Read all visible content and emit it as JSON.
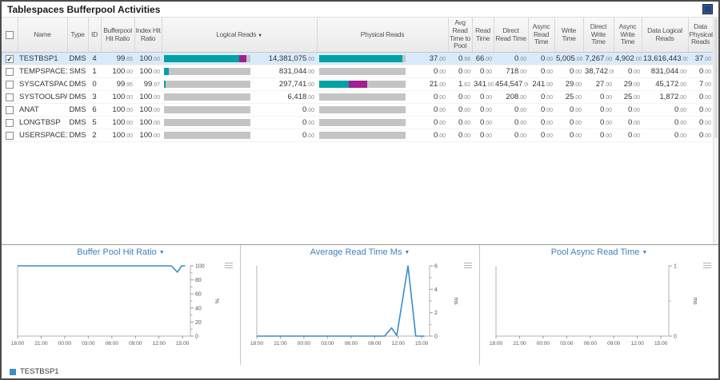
{
  "title": "Tablespaces Bufferpool Activities",
  "icons": {
    "caret": "▼",
    "sort_desc": "▼",
    "check": "✓"
  },
  "colors": {
    "teal": "#00a2a4",
    "purple": "#a0208f",
    "series": "#3d8cc9",
    "selected": "#d9eafa",
    "charttitle": "#4080bf"
  },
  "table": {
    "columns": [
      {
        "key": "checkbox",
        "label": ""
      },
      {
        "key": "name",
        "label": "Name"
      },
      {
        "key": "type",
        "label": "Type"
      },
      {
        "key": "id",
        "label": "ID"
      },
      {
        "key": "bufferpool_hit_ratio",
        "label": "Bufferpool Hit Ratio"
      },
      {
        "key": "index_hit_ratio",
        "label": "Index Hit Ratio"
      },
      {
        "key": "logical_reads",
        "label": "Logical Reads",
        "sorted": "desc"
      },
      {
        "key": "physical_reads",
        "label": "Physical Reads"
      },
      {
        "key": "avg_read_time_to_pool",
        "label": "Avg Read Time to Pool"
      },
      {
        "key": "read_time",
        "label": "Read Time"
      },
      {
        "key": "direct_read_time",
        "label": "Direct Read Time"
      },
      {
        "key": "async_read_time",
        "label": "Async Read Time"
      },
      {
        "key": "write_time",
        "label": "Write Time"
      },
      {
        "key": "direct_write_time",
        "label": "Direct Write Time"
      },
      {
        "key": "async_write_time",
        "label": "Async Write Time"
      },
      {
        "key": "data_logical_reads",
        "label": "Data Logical Reads"
      },
      {
        "key": "data_physical_reads",
        "label": "Data Physical Reads"
      }
    ],
    "rows": [
      {
        "checked": true,
        "selected": true,
        "name": "TESTBSP1",
        "type": "DMS",
        "id": "4",
        "bufferpool_hit_ratio": "99.65",
        "index_hit_ratio": "100.00",
        "logical_reads": "14,381,075.00",
        "logical_bar": [
          87,
          8
        ],
        "physical_reads": "37.00",
        "physical_bar": [
          96,
          0
        ],
        "avg_read_time_to_pool": "0.98",
        "read_time": "66.00",
        "direct_read_time": "0.00",
        "async_read_time": "0.00",
        "write_time": "5,005.00",
        "direct_write_time": "7,267.00",
        "async_write_time": "4,902.00",
        "data_logical_reads": "13,616,443.00",
        "data_physical_reads": "37.00"
      },
      {
        "checked": false,
        "selected": false,
        "name": "TEMPSPACE1",
        "type": "SMS",
        "id": "1",
        "bufferpool_hit_ratio": "100.00",
        "index_hit_ratio": "100.00",
        "logical_reads": "831,044.00",
        "logical_bar": [
          6,
          0
        ],
        "physical_reads": "0.00",
        "physical_bar": [
          0,
          0
        ],
        "avg_read_time_to_pool": "0.00",
        "read_time": "0.00",
        "direct_read_time": "718.00",
        "async_read_time": "0.00",
        "write_time": "0.00",
        "direct_write_time": "38,742.00",
        "async_write_time": "0.00",
        "data_logical_reads": "831,044.00",
        "data_physical_reads": "0.00"
      },
      {
        "checked": false,
        "selected": false,
        "name": "SYSCATSPACE",
        "type": "DMS",
        "id": "0",
        "bufferpool_hit_ratio": "99.95",
        "index_hit_ratio": "99.97",
        "logical_reads": "297,741.00",
        "logical_bar": [
          2,
          0
        ],
        "physical_reads": "21.00",
        "physical_bar": [
          34,
          22
        ],
        "avg_read_time_to_pool": "1.62",
        "read_time": "341.00",
        "direct_read_time": "454,547.00",
        "async_read_time": "241.00",
        "write_time": "29.00",
        "direct_write_time": "27.00",
        "async_write_time": "29.00",
        "data_logical_reads": "45,172.00",
        "data_physical_reads": "7.00"
      },
      {
        "checked": false,
        "selected": false,
        "name": "SYSTOOLSPACE",
        "type": "DMS",
        "id": "3",
        "bufferpool_hit_ratio": "100.00",
        "index_hit_ratio": "100.00",
        "logical_reads": "6,418.00",
        "logical_bar": [
          0,
          0
        ],
        "physical_reads": "0.00",
        "physical_bar": [
          0,
          0
        ],
        "avg_read_time_to_pool": "0.00",
        "read_time": "0.00",
        "direct_read_time": "208.00",
        "async_read_time": "0.00",
        "write_time": "25.00",
        "direct_write_time": "0.00",
        "async_write_time": "25.00",
        "data_logical_reads": "1,872.00",
        "data_physical_reads": "0.00"
      },
      {
        "checked": false,
        "selected": false,
        "name": "ANAT",
        "type": "DMS",
        "id": "6",
        "bufferpool_hit_ratio": "100.00",
        "index_hit_ratio": "100.00",
        "logical_reads": "0.00",
        "logical_bar": [
          0,
          0
        ],
        "physical_reads": "0.00",
        "physical_bar": [
          0,
          0
        ],
        "avg_read_time_to_pool": "0.00",
        "read_time": "0.00",
        "direct_read_time": "0.00",
        "async_read_time": "0.00",
        "write_time": "0.00",
        "direct_write_time": "0.00",
        "async_write_time": "0.00",
        "data_logical_reads": "0.00",
        "data_physical_reads": "0.00"
      },
      {
        "checked": false,
        "selected": false,
        "name": "LONGTBSP",
        "type": "DMS",
        "id": "5",
        "bufferpool_hit_ratio": "100.00",
        "index_hit_ratio": "100.00",
        "logical_reads": "0.00",
        "logical_bar": [
          0,
          0
        ],
        "physical_reads": "0.00",
        "physical_bar": [
          0,
          0
        ],
        "avg_read_time_to_pool": "0.00",
        "read_time": "0.00",
        "direct_read_time": "0.00",
        "async_read_time": "0.00",
        "write_time": "0.00",
        "direct_write_time": "0.00",
        "async_write_time": "0.00",
        "data_logical_reads": "0.00",
        "data_physical_reads": "0.00"
      },
      {
        "checked": false,
        "selected": false,
        "name": "USERSPACE1",
        "type": "DMS",
        "id": "2",
        "bufferpool_hit_ratio": "100.00",
        "index_hit_ratio": "100.00",
        "logical_reads": "0.00",
        "logical_bar": [
          0,
          0
        ],
        "physical_reads": "0.00",
        "physical_bar": [
          0,
          0
        ],
        "avg_read_time_to_pool": "0.00",
        "read_time": "0.00",
        "direct_read_time": "0.00",
        "async_read_time": "0.00",
        "write_time": "0.00",
        "direct_write_time": "0.00",
        "async_write_time": "0.00",
        "data_logical_reads": "0.00",
        "data_physical_reads": "0.00"
      }
    ]
  },
  "charts": [
    {
      "type": "line",
      "title": "Buffer Pool Hit Ratio",
      "unit": "%",
      "ymin": 0,
      "ymax": 100,
      "yticks": [
        0,
        20,
        40,
        60,
        80,
        100
      ],
      "xticks": [
        "18:00",
        "21:00",
        "00:00",
        "03:00",
        "06:00",
        "09:00",
        "12:00",
        "15:00"
      ],
      "series": [
        {
          "name": "TESTBSP1",
          "points": [
            [
              0,
              100
            ],
            [
              0.89,
              100
            ],
            [
              0.925,
              91
            ],
            [
              0.95,
              100
            ],
            [
              0.97,
              100
            ]
          ]
        }
      ]
    },
    {
      "type": "line",
      "title": "Average Read Time Ms",
      "unit": "ms",
      "ymin": 0,
      "ymax": 6,
      "yticks": [
        0,
        2,
        4,
        6
      ],
      "xticks": [
        "18:00",
        "21:00",
        "00:00",
        "03:00",
        "06:00",
        "09:00",
        "12:00",
        "15:00"
      ],
      "series": [
        {
          "name": "TESTBSP1",
          "points": [
            [
              0,
              0
            ],
            [
              0.74,
              0
            ],
            [
              0.78,
              0.7
            ],
            [
              0.81,
              0.05
            ],
            [
              0.875,
              6
            ],
            [
              0.92,
              0
            ],
            [
              0.97,
              0
            ]
          ]
        }
      ]
    },
    {
      "type": "line",
      "title": "Pool Async Read Time",
      "unit": "ms",
      "ymin": 0,
      "ymax": 1,
      "yticks": [
        0,
        1
      ],
      "xticks": [
        "18:00",
        "21:00",
        "00:00",
        "03:00",
        "06:00",
        "09:00",
        "12:00",
        "15:00"
      ],
      "series": []
    }
  ],
  "legend": {
    "label": "TESTBSP1"
  }
}
